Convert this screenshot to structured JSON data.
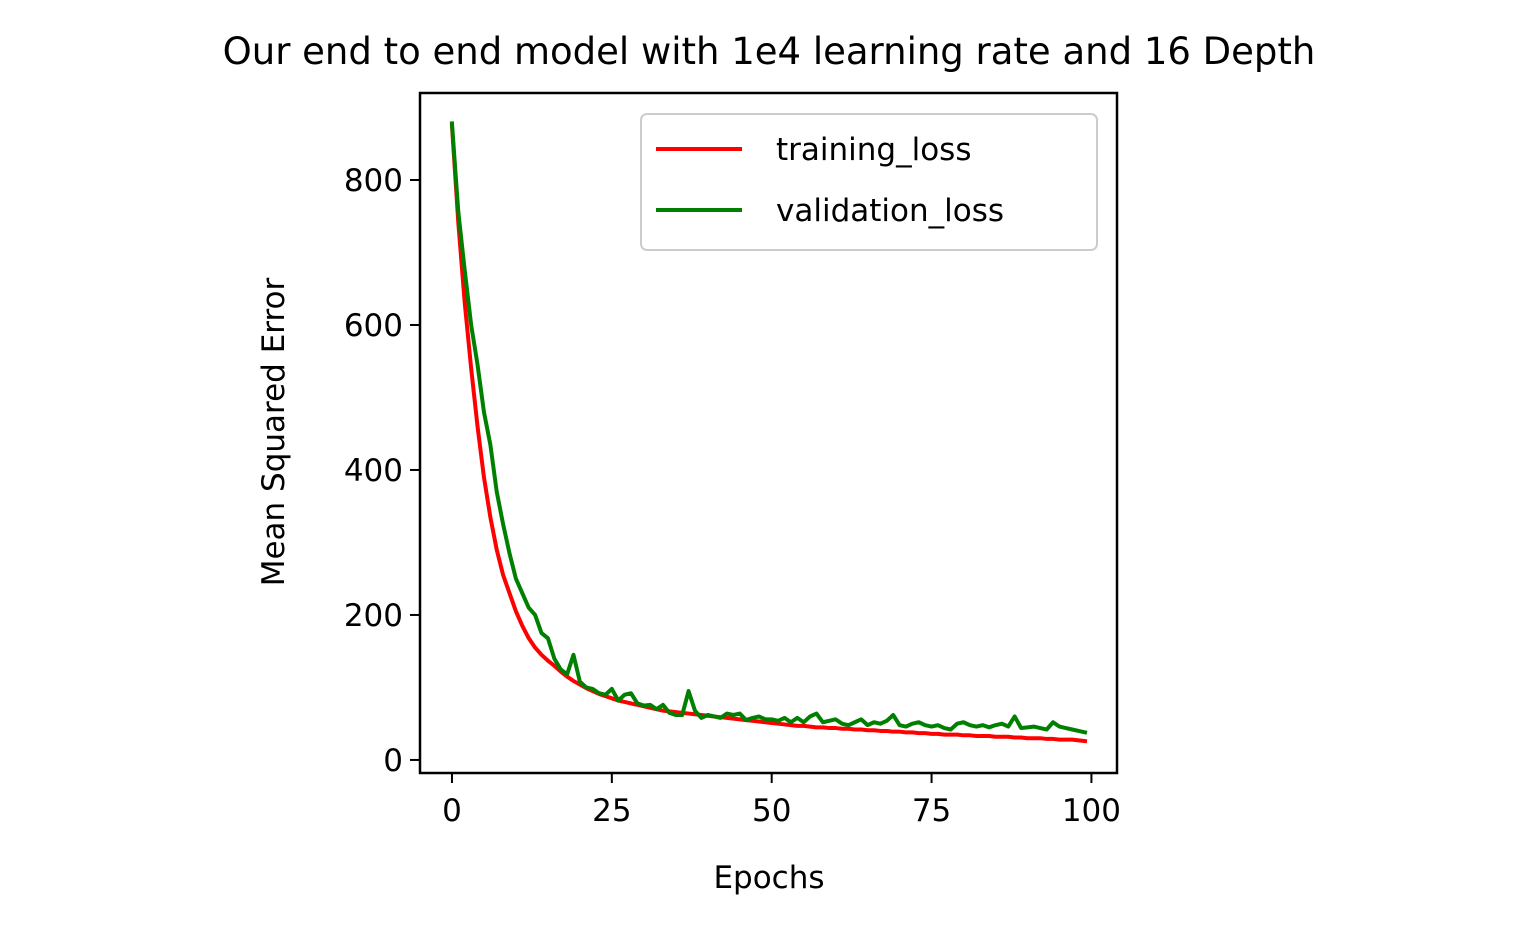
{
  "chart_data": {
    "type": "line",
    "title": "Our end to end model with 1e4 learning rate and 16 Depth",
    "xlabel": "Epochs",
    "ylabel": "Mean Squared Error",
    "xlim": [
      -5,
      104
    ],
    "ylim": [
      -18,
      920
    ],
    "xticks": [
      0,
      25,
      50,
      75,
      100
    ],
    "yticks": [
      0,
      200,
      400,
      600,
      800
    ],
    "xtick_labels": [
      "0",
      "25",
      "50",
      "75",
      "100"
    ],
    "ytick_labels": [
      "0",
      "200",
      "400",
      "600",
      "800"
    ],
    "grid": false,
    "legend_position": "top-right",
    "series": [
      {
        "name": "training_loss",
        "color": "#ff0000",
        "x": [
          0,
          1,
          2,
          3,
          4,
          5,
          6,
          7,
          8,
          9,
          10,
          11,
          12,
          13,
          14,
          15,
          16,
          17,
          18,
          19,
          20,
          21,
          22,
          23,
          24,
          25,
          26,
          27,
          28,
          29,
          30,
          31,
          32,
          33,
          34,
          35,
          36,
          37,
          38,
          39,
          40,
          41,
          42,
          43,
          44,
          45,
          46,
          47,
          48,
          49,
          50,
          51,
          52,
          53,
          54,
          55,
          56,
          57,
          58,
          59,
          60,
          61,
          62,
          63,
          64,
          65,
          66,
          67,
          68,
          69,
          70,
          71,
          72,
          73,
          74,
          75,
          76,
          77,
          78,
          79,
          80,
          81,
          82,
          83,
          84,
          85,
          86,
          87,
          88,
          89,
          90,
          91,
          92,
          93,
          94,
          95,
          96,
          97,
          98,
          99
        ],
        "y": [
          875,
          740,
          630,
          540,
          460,
          390,
          335,
          290,
          255,
          230,
          205,
          185,
          168,
          155,
          145,
          137,
          130,
          122,
          115,
          109,
          104,
          99,
          95,
          91,
          88,
          85,
          82,
          80,
          78,
          76,
          74,
          72,
          70,
          68,
          67,
          66,
          65,
          64,
          63,
          62,
          61,
          60,
          59,
          58,
          57,
          56,
          55,
          54,
          53,
          52,
          51,
          50,
          49,
          48,
          47,
          47,
          46,
          45,
          45,
          44,
          44,
          43,
          43,
          42,
          42,
          41,
          41,
          40,
          40,
          39,
          39,
          38,
          38,
          37,
          37,
          36,
          36,
          35,
          35,
          35,
          34,
          34,
          33,
          33,
          33,
          32,
          32,
          32,
          31,
          31,
          30,
          30,
          30,
          29,
          29,
          28,
          28,
          28,
          27,
          26
        ]
      },
      {
        "name": "validation_loss",
        "color": "#008000",
        "x": [
          0,
          1,
          2,
          3,
          4,
          5,
          6,
          7,
          8,
          9,
          10,
          11,
          12,
          13,
          14,
          15,
          16,
          17,
          18,
          19,
          20,
          21,
          22,
          23,
          24,
          25,
          26,
          27,
          28,
          29,
          30,
          31,
          32,
          33,
          34,
          35,
          36,
          37,
          38,
          39,
          40,
          41,
          42,
          43,
          44,
          45,
          46,
          47,
          48,
          49,
          50,
          51,
          52,
          53,
          54,
          55,
          56,
          57,
          58,
          59,
          60,
          61,
          62,
          63,
          64,
          65,
          66,
          67,
          68,
          69,
          70,
          71,
          72,
          73,
          74,
          75,
          76,
          77,
          78,
          79,
          80,
          81,
          82,
          83,
          84,
          85,
          86,
          87,
          88,
          89,
          90,
          91,
          92,
          93,
          94,
          95,
          96,
          97,
          98,
          99
        ],
        "y": [
          878,
          755,
          675,
          600,
          545,
          480,
          435,
          370,
          325,
          285,
          250,
          230,
          210,
          200,
          175,
          168,
          140,
          125,
          118,
          145,
          108,
          100,
          98,
          92,
          90,
          98,
          82,
          90,
          92,
          78,
          75,
          76,
          70,
          76,
          65,
          62,
          62,
          95,
          68,
          58,
          62,
          60,
          58,
          64,
          62,
          64,
          55,
          58,
          60,
          56,
          56,
          54,
          58,
          52,
          58,
          52,
          60,
          64,
          52,
          54,
          56,
          50,
          48,
          52,
          56,
          48,
          52,
          50,
          54,
          62,
          48,
          46,
          50,
          52,
          48,
          46,
          48,
          44,
          42,
          50,
          52,
          48,
          46,
          48,
          45,
          48,
          50,
          46,
          60,
          44,
          45,
          46,
          44,
          42,
          52,
          46,
          44,
          42,
          40,
          38
        ]
      }
    ]
  }
}
